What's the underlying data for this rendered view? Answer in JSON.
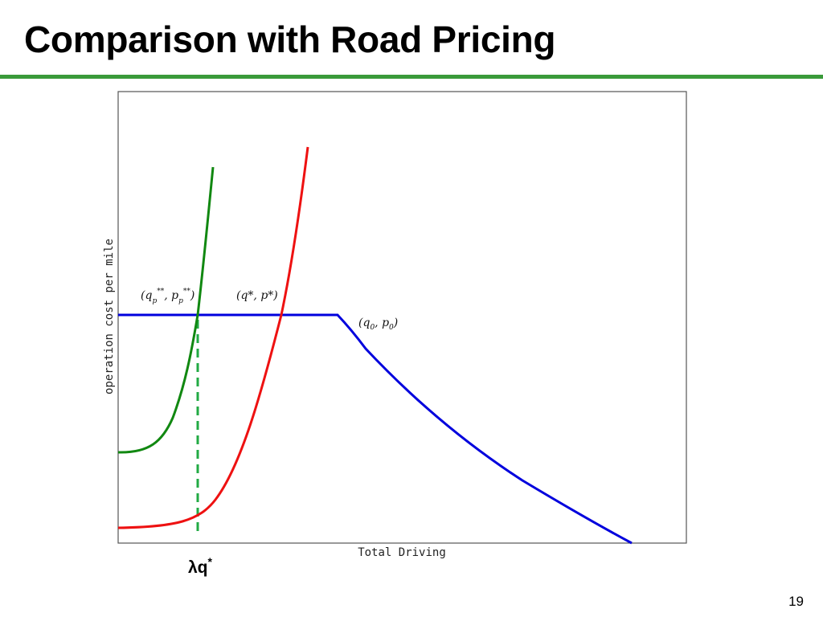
{
  "slide": {
    "title": "Comparison with Road Pricing",
    "page_number": "19"
  },
  "figure": {
    "y_axis_label": "operation cost per mile",
    "x_axis_label": "Total Driving",
    "point_labels": {
      "priced_equilibrium": {
        "base": "(q",
        "sub": "p",
        "sup": "**",
        "mid": ", p",
        "sub2": "p",
        "sup2": "**",
        "end": ")"
      },
      "optimal": {
        "text": "(q*, p*)"
      },
      "kink": {
        "base": "(q",
        "sub": "0",
        "mid": ", p",
        "sub2": "0",
        "end": ")"
      }
    },
    "marker_label": {
      "main": "λq",
      "sup": "*"
    },
    "colors": {
      "supply_curve": "#0000dd",
      "priced_demand_curve": "#118811",
      "demand_curve": "#ee1111",
      "dashed_marker": "#22aa44"
    }
  }
}
